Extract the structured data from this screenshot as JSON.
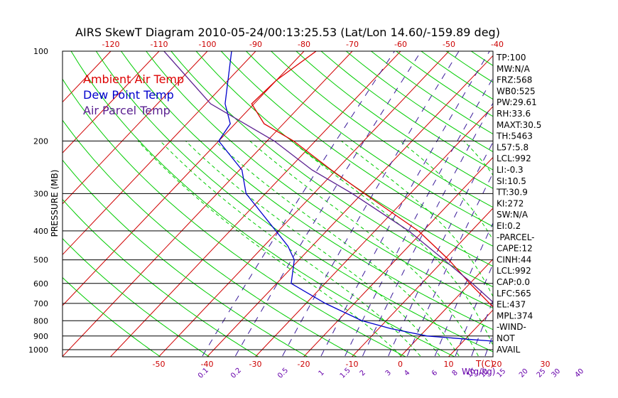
{
  "chart_data": {
    "type": "line",
    "title": "AIRS SkewT Diagram 2010-05-24/00:13:25.53 (Lat/Lon 14.60/-159.89 deg)",
    "ylabel": "PRESSURE (MB)",
    "y_scale": "log",
    "ylim": [
      1000,
      100
    ],
    "pressure_ticks": [
      100,
      200,
      300,
      400,
      500,
      600,
      700,
      800,
      900,
      1000
    ],
    "top_axis": {
      "ticks": [
        -120,
        -110,
        -100,
        -90,
        -80,
        -70,
        -60,
        -50,
        -40
      ]
    },
    "bottom_axis": {
      "ticks": [
        -50,
        -40,
        -30,
        -20,
        -10,
        0,
        10,
        20,
        30
      ],
      "label": "T(C)"
    },
    "mixing_ratio": {
      "label": "W(g/kg)",
      "values": [
        "0.1",
        "0.2",
        "0.5",
        "1",
        "1.5",
        "2",
        "3",
        "4",
        "6",
        "8",
        "10",
        "12",
        "15",
        "20",
        "25",
        "30",
        "40"
      ]
    },
    "legend": {
      "placement": "top-left",
      "entries": [
        {
          "name": "Ambient Air Temp",
          "color": "#dd0000"
        },
        {
          "name": "Dew Point Temp",
          "color": "#0000cc"
        },
        {
          "name": "Air Parcel Temp",
          "color": "#5a2090"
        }
      ]
    },
    "series": [
      {
        "name": "Ambient Air Temp",
        "points": [
          [
            1000,
            27.0
          ],
          [
            980,
            24.2
          ],
          [
            950,
            23.2
          ],
          [
            900,
            21.8
          ],
          [
            850,
            18.9
          ],
          [
            800,
            15.0
          ],
          [
            700,
            8.0
          ],
          [
            600,
            0.0
          ],
          [
            500,
            -9.0
          ],
          [
            400,
            -21.0
          ],
          [
            300,
            -39.5
          ],
          [
            250,
            -51.0
          ],
          [
            200,
            -64.5
          ],
          [
            175,
            -74.0
          ],
          [
            150,
            -80.5
          ],
          [
            125,
            -80.0
          ],
          [
            100,
            -77.5
          ]
        ]
      },
      {
        "name": "Dew Point Temp",
        "points": [
          [
            1000,
            22.5
          ],
          [
            980,
            22.2
          ],
          [
            950,
            21.5
          ],
          [
            925,
            11.5
          ],
          [
            900,
            1.5
          ],
          [
            850,
            -7.5
          ],
          [
            800,
            -15.0
          ],
          [
            700,
            -26.0
          ],
          [
            600,
            -37.0
          ],
          [
            500,
            -41.0
          ],
          [
            450,
            -45.0
          ],
          [
            400,
            -50.5
          ],
          [
            300,
            -64.0
          ],
          [
            250,
            -69.5
          ],
          [
            200,
            -80.0
          ],
          [
            175,
            -81.0
          ],
          [
            150,
            -86.0
          ],
          [
            100,
            -95.0
          ]
        ]
      },
      {
        "name": "Air Parcel Temp",
        "points": [
          [
            1000,
            25.0
          ],
          [
            950,
            22.0
          ],
          [
            900,
            20.5
          ],
          [
            800,
            16.0
          ],
          [
            700,
            9.0
          ],
          [
            600,
            0.5
          ],
          [
            500,
            -10.0
          ],
          [
            400,
            -23.0
          ],
          [
            300,
            -42.0
          ],
          [
            250,
            -55.0
          ],
          [
            200,
            -68.5
          ],
          [
            150,
            -89.0
          ],
          [
            125,
            -98.0
          ],
          [
            100,
            -109.0
          ]
        ]
      }
    ],
    "grid": true
  },
  "indices": [
    "TP:100",
    "MW:N/A",
    "FRZ:568",
    "WB0:525",
    "PW:29.61",
    "RH:33.6",
    "MAXT:30.5",
    "TH:5463",
    "L57:5.8",
    "LCL:992",
    "LI:-0.3",
    "SI:10.5",
    "TT:30.9",
    "KI:272",
    "SW:N/A",
    "EI:0.2",
    "-PARCEL-",
    "CAPE:12",
    "CINH:44",
    "LCL:992",
    "CAP:0.0",
    "LFC:565",
    "EL:437",
    "MPL:374",
    "-WIND-",
    "NOT",
    "AVAIL"
  ],
  "colors": {
    "temp": "#dd0000",
    "dew": "#0000cc",
    "parcel": "#5a2090",
    "isotherm": "#d00000",
    "dry_adiabat": "#00cc00",
    "moist_adiabat": "#00cc00",
    "mixing_ratio": "#3a1a99",
    "isobar": "#000000",
    "axis_label": "#cc0000",
    "mixing_label": "#6600aa"
  }
}
